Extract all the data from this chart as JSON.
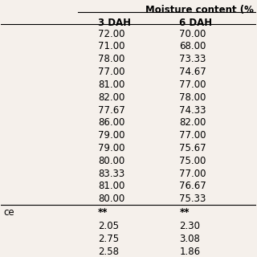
{
  "header_top": "Moisture content (%",
  "col_headers": [
    "3 DAH",
    "6 DAH"
  ],
  "rows": [
    [
      "72.00",
      "70.00"
    ],
    [
      "71.00",
      "68.00"
    ],
    [
      "78.00",
      "73.33"
    ],
    [
      "77.00",
      "74.67"
    ],
    [
      "81.00",
      "77.00"
    ],
    [
      "82.00",
      "78.00"
    ],
    [
      "77.67",
      "74.33"
    ],
    [
      "86.00",
      "82.00"
    ],
    [
      "79.00",
      "77.00"
    ],
    [
      "79.00",
      "75.67"
    ],
    [
      "80.00",
      "75.00"
    ],
    [
      "83.33",
      "77.00"
    ],
    [
      "81.00",
      "76.67"
    ],
    [
      "80.00",
      "75.33"
    ]
  ],
  "significance_label": "ce",
  "significance_row": [
    "**",
    "**"
  ],
  "stat_rows": [
    [
      "2.05",
      "2.30"
    ],
    [
      "2.75",
      "3.08"
    ],
    [
      "2.58",
      "1.86"
    ]
  ],
  "bg_color": "#f5f0eb",
  "font_size": 8.5,
  "header_font_size": 8.5
}
